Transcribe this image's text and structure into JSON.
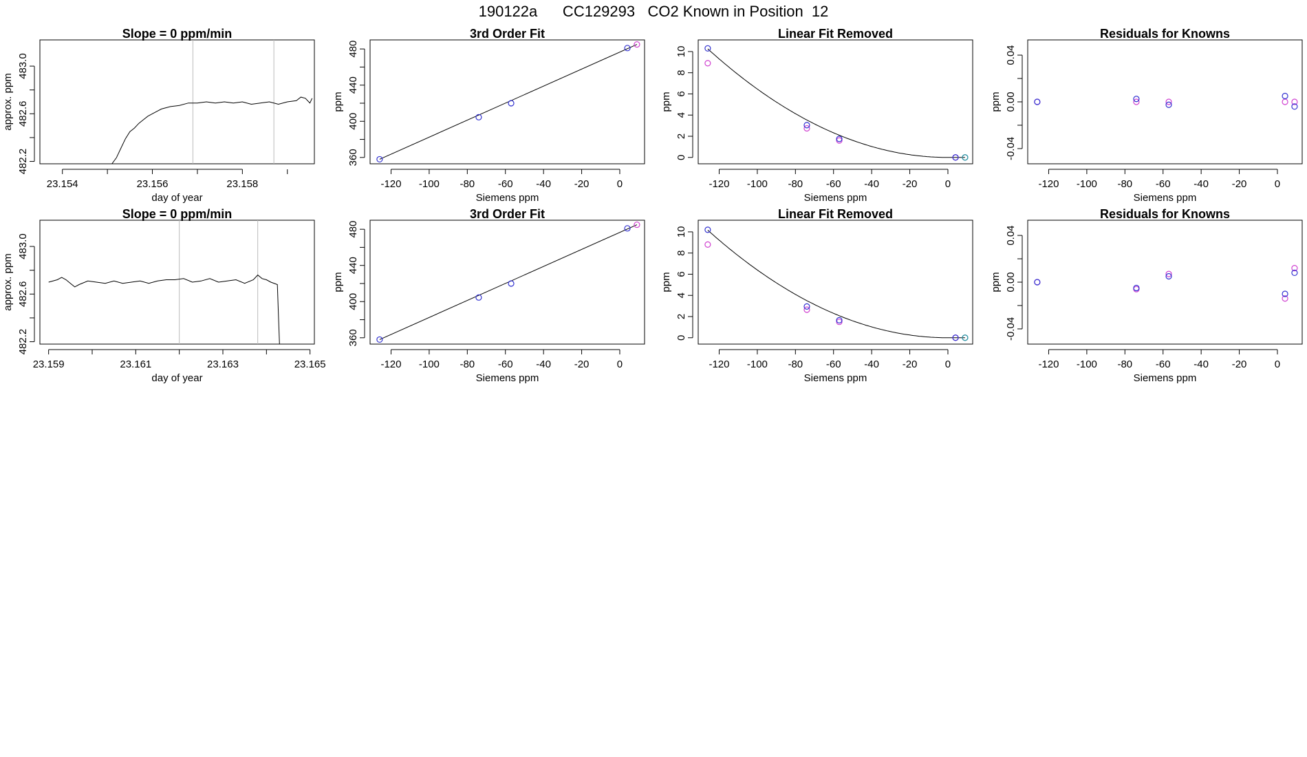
{
  "page_title": "190122a      CC129293   CO2 Known in Position  12",
  "colors": {
    "axis": "#000000",
    "line": "#000000",
    "marker_blue": "#3030d0",
    "marker_magenta": "#d040d0",
    "vline": "#bbbbbb",
    "tick_dot_red": "#e06060"
  },
  "chart_data": [
    {
      "type": "line",
      "panel": "r1c1",
      "title": "Slope =  0  ppm/min",
      "xlabel": "day of year",
      "ylabel": "approx. ppm",
      "xlim": [
        23.1535,
        23.1596
      ],
      "ylim": [
        482.18,
        483.22
      ],
      "xticks": [
        23.154,
        23.156,
        23.158
      ],
      "xtick_labels": [
        "23.154",
        "23.156",
        "23.158"
      ],
      "xticks_minor": [
        23.155,
        23.157,
        23.159
      ],
      "yticks": [
        482.2,
        482.6,
        483.0
      ],
      "ytick_labels": [
        "482.2",
        "482.6",
        "483.0"
      ],
      "yticks_minor": [
        482.4,
        482.8
      ],
      "vlines": [
        23.1569,
        23.1587
      ],
      "points": [
        [
          23.1551,
          482.18
        ],
        [
          23.1552,
          482.23
        ],
        [
          23.1553,
          482.31
        ],
        [
          23.1554,
          482.39
        ],
        [
          23.1555,
          482.45
        ],
        [
          23.1556,
          482.48
        ],
        [
          23.1557,
          482.52
        ],
        [
          23.1558,
          482.55
        ],
        [
          23.1559,
          482.58
        ],
        [
          23.156,
          482.6
        ],
        [
          23.1561,
          482.62
        ],
        [
          23.1562,
          482.64
        ],
        [
          23.1564,
          482.66
        ],
        [
          23.1566,
          482.67
        ],
        [
          23.1568,
          482.69
        ],
        [
          23.157,
          482.69
        ],
        [
          23.1572,
          482.7
        ],
        [
          23.1574,
          482.69
        ],
        [
          23.1576,
          482.7
        ],
        [
          23.1578,
          482.69
        ],
        [
          23.158,
          482.7
        ],
        [
          23.1582,
          482.68
        ],
        [
          23.1584,
          482.69
        ],
        [
          23.1586,
          482.7
        ],
        [
          23.1588,
          482.68
        ],
        [
          23.159,
          482.7
        ],
        [
          23.1592,
          482.71
        ],
        [
          23.1593,
          482.74
        ],
        [
          23.1594,
          482.73
        ],
        [
          23.1595,
          482.69
        ],
        [
          23.15955,
          482.73
        ]
      ]
    },
    {
      "type": "scatter",
      "panel": "r1c2",
      "title": "3rd Order Fit",
      "xlabel": "Siemens ppm",
      "ylabel": "ppm",
      "xlim": [
        -131,
        13
      ],
      "ylim": [
        353,
        490
      ],
      "xticks": [
        -120,
        -100,
        -80,
        -60,
        -40,
        -20,
        0
      ],
      "xtick_labels": [
        "-120",
        "-100",
        "-80",
        "-60",
        "-40",
        "-20",
        "0"
      ],
      "yticks": [
        360,
        400,
        440,
        480
      ],
      "ytick_labels": [
        "360",
        "400",
        "440",
        "480"
      ],
      "yticks_minor": [
        380,
        420,
        460
      ],
      "fit_line": [
        [
          -126,
          358
        ],
        [
          9,
          485
        ]
      ],
      "points_blue": [
        [
          -126,
          358
        ],
        [
          -74,
          404.5
        ],
        [
          -57,
          420
        ],
        [
          4,
          481
        ]
      ],
      "points_magenta": [
        [
          9,
          485
        ]
      ]
    },
    {
      "type": "scatter",
      "panel": "r1c3",
      "title": "Linear Fit Removed",
      "xlabel": "Siemens ppm",
      "ylabel": "ppm",
      "xlim": [
        -131,
        13
      ],
      "ylim": [
        -0.6,
        11.1
      ],
      "xticks": [
        -120,
        -100,
        -80,
        -60,
        -40,
        -20,
        0
      ],
      "xtick_labels": [
        "-120",
        "-100",
        "-80",
        "-60",
        "-40",
        "-20",
        "0"
      ],
      "yticks": [
        0,
        2,
        4,
        6,
        8,
        10
      ],
      "ytick_labels": [
        "0",
        "2",
        "4",
        "6",
        "8",
        "10"
      ],
      "curve_coeff": {
        "a": 0.000646,
        "x0": 0
      },
      "curve_range": [
        -126,
        9
      ],
      "points_blue": [
        [
          -126,
          10.3
        ],
        [
          -74,
          3.05
        ],
        [
          -57,
          1.75
        ],
        [
          4,
          0
        ],
        [
          9,
          0
        ]
      ],
      "points_magenta": [
        [
          -126,
          8.9
        ],
        [
          -74,
          2.75
        ],
        [
          -57,
          1.6
        ],
        [
          4,
          0
        ]
      ],
      "points_teal": [
        [
          9,
          0
        ]
      ]
    },
    {
      "type": "scatter",
      "panel": "r1c4",
      "title": "Residuals for Knowns",
      "xlabel": "Siemens ppm",
      "ylabel": "ppm",
      "xlim": [
        -131,
        13
      ],
      "ylim": [
        -0.053,
        0.053
      ],
      "xticks": [
        -120,
        -100,
        -80,
        -60,
        -40,
        -20,
        0
      ],
      "xtick_labels": [
        "-120",
        "-100",
        "-80",
        "-60",
        "-40",
        "-20",
        "0"
      ],
      "yticks": [
        -0.04,
        0.0,
        0.04
      ],
      "ytick_labels": [
        "-0.04",
        "0.00",
        "0.04"
      ],
      "yticks_minor": [
        -0.02,
        0.02
      ],
      "points_blue": [
        [
          -126,
          0.0
        ],
        [
          -74,
          0.0025
        ],
        [
          -57,
          -0.0025
        ],
        [
          4,
          0.005
        ],
        [
          9,
          -0.004
        ]
      ],
      "points_magenta": [
        [
          -126,
          0.0
        ],
        [
          -74,
          0.0
        ],
        [
          -57,
          0.0
        ],
        [
          4,
          0.0
        ],
        [
          9,
          0.0
        ]
      ]
    },
    {
      "type": "line",
      "panel": "r2c1",
      "title": "Slope =  0  ppm/min",
      "xlabel": "day of year",
      "ylabel": "approx. ppm",
      "xlim": [
        23.1588,
        23.1651
      ],
      "ylim": [
        482.18,
        483.22
      ],
      "xticks": [
        23.159,
        23.161,
        23.163,
        23.165
      ],
      "xtick_labels": [
        "23.159",
        "23.161",
        "23.163",
        "23.165"
      ],
      "xticks_minor": [
        23.16,
        23.162,
        23.164
      ],
      "yticks": [
        482.2,
        482.6,
        483.0
      ],
      "ytick_labels": [
        "482.2",
        "482.6",
        "483.0"
      ],
      "yticks_minor": [
        482.4,
        482.8
      ],
      "vlines": [
        23.162,
        23.1638
      ],
      "points": [
        [
          23.159,
          482.7
        ],
        [
          23.1592,
          482.72
        ],
        [
          23.1593,
          482.74
        ],
        [
          23.1594,
          482.72
        ],
        [
          23.1595,
          482.69
        ],
        [
          23.1596,
          482.66
        ],
        [
          23.1597,
          482.68
        ],
        [
          23.1599,
          482.71
        ],
        [
          23.1601,
          482.7
        ],
        [
          23.1603,
          482.69
        ],
        [
          23.1605,
          482.71
        ],
        [
          23.1607,
          482.69
        ],
        [
          23.1609,
          482.7
        ],
        [
          23.1611,
          482.71
        ],
        [
          23.1613,
          482.69
        ],
        [
          23.1615,
          482.71
        ],
        [
          23.1617,
          482.72
        ],
        [
          23.1619,
          482.72
        ],
        [
          23.1621,
          482.73
        ],
        [
          23.1623,
          482.7
        ],
        [
          23.1625,
          482.71
        ],
        [
          23.1627,
          482.73
        ],
        [
          23.1629,
          482.7
        ],
        [
          23.1631,
          482.71
        ],
        [
          23.1633,
          482.72
        ],
        [
          23.1635,
          482.69
        ],
        [
          23.1637,
          482.72
        ],
        [
          23.1638,
          482.76
        ],
        [
          23.1639,
          482.73
        ],
        [
          23.164,
          482.72
        ],
        [
          23.1641,
          482.7
        ],
        [
          23.16425,
          482.68
        ],
        [
          23.1643,
          482.18
        ]
      ]
    },
    {
      "type": "scatter",
      "panel": "r2c2",
      "title": "3rd Order Fit",
      "xlabel": "Siemens ppm",
      "ylabel": "ppm",
      "xlim": [
        -131,
        13
      ],
      "ylim": [
        353,
        490
      ],
      "xticks": [
        -120,
        -100,
        -80,
        -60,
        -40,
        -20,
        0
      ],
      "xtick_labels": [
        "-120",
        "-100",
        "-80",
        "-60",
        "-40",
        "-20",
        "0"
      ],
      "yticks": [
        360,
        400,
        440,
        480
      ],
      "ytick_labels": [
        "360",
        "400",
        "440",
        "480"
      ],
      "yticks_minor": [
        380,
        420,
        460
      ],
      "fit_line": [
        [
          -126,
          358
        ],
        [
          9,
          485
        ]
      ],
      "points_blue": [
        [
          -126,
          358
        ],
        [
          -74,
          404.5
        ],
        [
          -57,
          420
        ],
        [
          4,
          481
        ]
      ],
      "points_magenta": [
        [
          9,
          485
        ]
      ]
    },
    {
      "type": "scatter",
      "panel": "r2c3",
      "title": "Linear Fit Removed",
      "xlabel": "Siemens ppm",
      "ylabel": "ppm",
      "xlim": [
        -131,
        13
      ],
      "ylim": [
        -0.6,
        11.1
      ],
      "xticks": [
        -120,
        -100,
        -80,
        -60,
        -40,
        -20,
        0
      ],
      "xtick_labels": [
        "-120",
        "-100",
        "-80",
        "-60",
        "-40",
        "-20",
        "0"
      ],
      "yticks": [
        0,
        2,
        4,
        6,
        8,
        10
      ],
      "ytick_labels": [
        "0",
        "2",
        "4",
        "6",
        "8",
        "10"
      ],
      "curve_coeff": {
        "a": 0.00064,
        "x0": 0
      },
      "curve_range": [
        -126,
        9
      ],
      "points_blue": [
        [
          -126,
          10.2
        ],
        [
          -74,
          2.95
        ],
        [
          -57,
          1.65
        ],
        [
          4,
          0
        ],
        [
          9,
          0
        ]
      ],
      "points_magenta": [
        [
          -126,
          8.8
        ],
        [
          -74,
          2.65
        ],
        [
          -57,
          1.5
        ],
        [
          4,
          0
        ]
      ],
      "points_teal": [
        [
          9,
          0
        ]
      ]
    },
    {
      "type": "scatter",
      "panel": "r2c4",
      "title": "Residuals for Knowns",
      "xlabel": "Siemens ppm",
      "ylabel": "ppm",
      "xlim": [
        -131,
        13
      ],
      "ylim": [
        -0.053,
        0.053
      ],
      "xticks": [
        -120,
        -100,
        -80,
        -60,
        -40,
        -20,
        0
      ],
      "xtick_labels": [
        "-120",
        "-100",
        "-80",
        "-60",
        "-40",
        "-20",
        "0"
      ],
      "yticks": [
        -0.04,
        0.0,
        0.04
      ],
      "ytick_labels": [
        "-0.04",
        "0.00",
        "0.04"
      ],
      "yticks_minor": [
        -0.02,
        0.02
      ],
      "points_blue": [
        [
          -126,
          0.0
        ],
        [
          -74,
          -0.005
        ],
        [
          -57,
          0.005
        ],
        [
          4,
          -0.01
        ],
        [
          9,
          0.008
        ]
      ],
      "points_magenta": [
        [
          -126,
          0.0
        ],
        [
          -74,
          -0.006
        ],
        [
          -57,
          0.007
        ],
        [
          4,
          -0.014
        ],
        [
          9,
          0.012
        ]
      ]
    }
  ]
}
